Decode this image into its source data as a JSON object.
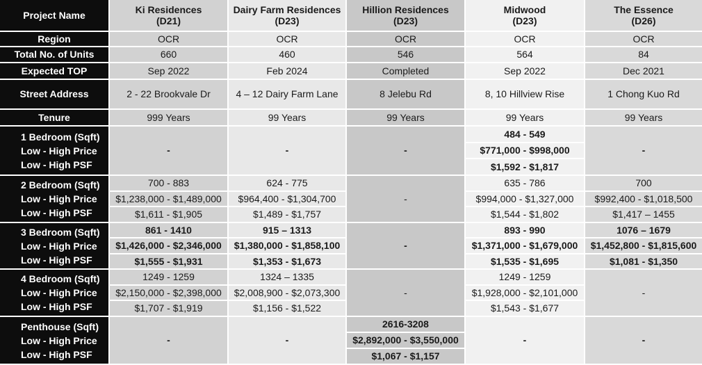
{
  "corner_label": "Project Name",
  "projects": [
    {
      "name": "Ki Residences",
      "district": "(D21)",
      "region": "OCR",
      "units": "660",
      "top": "Sep 2022",
      "address": "2 - 22 Brookvale Dr",
      "tenure": "999 Years"
    },
    {
      "name": "Dairy Farm Residences",
      "district": "(D23)",
      "region": "OCR",
      "units": "460",
      "top": "Feb 2024",
      "address": "4 – 12 Dairy Farm Lane",
      "tenure": "99 Years"
    },
    {
      "name": "Hillion Residences",
      "district": "(D23)",
      "region": "OCR",
      "units": "546",
      "top": "Completed",
      "address": "8 Jelebu Rd",
      "tenure": "99 Years"
    },
    {
      "name": "Midwood",
      "district": "(D23)",
      "region": "OCR",
      "units": "564",
      "top": "Sep 2022",
      "address": "8, 10 Hillview Rise",
      "tenure": "99 Years"
    },
    {
      "name": "The Essence",
      "district": "(D26)",
      "region": "OCR",
      "units": "84",
      "top": "Dec 2021",
      "address": "1 Chong Kuo Rd",
      "tenure": "99 Years"
    }
  ],
  "row_labels": {
    "region": "Region",
    "units": "Total No. of Units",
    "top": "Expected TOP",
    "address": "Street Address",
    "tenure": "Tenure"
  },
  "unit_groups": [
    {
      "labels": [
        "1 Bedroom (Sqft)",
        "Low - High Price",
        "Low - High PSF"
      ],
      "bold": true,
      "cells": [
        {
          "dash": "-"
        },
        {
          "dash": "-"
        },
        {
          "dash": "-"
        },
        {
          "values": [
            "484 - 549",
            "$771,000 - $998,000",
            "$1,592 - $1,817"
          ]
        },
        {
          "dash": "-"
        }
      ]
    },
    {
      "labels": [
        "2 Bedroom (Sqft)",
        "Low - High Price",
        "Low - High PSF"
      ],
      "bold": false,
      "cells": [
        {
          "values": [
            "700 - 883",
            "$1,238,000 - $1,489,000",
            "$1,611 - $1,905"
          ]
        },
        {
          "values": [
            "624  - 775",
            "$964,400 - $1,304,700",
            "$1,489 - $1,757"
          ]
        },
        {
          "dash": "-"
        },
        {
          "values": [
            "635 - 786",
            "$994,000 - $1,327,000",
            "$1,544 - $1,802"
          ]
        },
        {
          "values": [
            "700",
            "$992,400 - $1,018,500",
            "$1,417 – 1455"
          ]
        }
      ]
    },
    {
      "labels": [
        "3 Bedroom (Sqft)",
        "Low - High Price",
        "Low - High PSF"
      ],
      "bold": true,
      "cells": [
        {
          "values": [
            "861 - 1410",
            "$1,426,000 - $2,346,000",
            "$1,555 - $1,931"
          ]
        },
        {
          "values": [
            "915 – 1313",
            "$1,380,000 - $1,858,100",
            "$1,353 - $1,673"
          ]
        },
        {
          "dash": "-"
        },
        {
          "values": [
            "893 - 990",
            "$1,371,000 - $1,679,000",
            "$1,535 - $1,695"
          ]
        },
        {
          "values": [
            "1076 – 1679",
            "$1,452,800 - $1,815,600",
            "$1,081 - $1,350"
          ]
        }
      ]
    },
    {
      "labels": [
        "4 Bedroom (Sqft)",
        "Low - High Price",
        "Low - High PSF"
      ],
      "bold": false,
      "cells": [
        {
          "values": [
            "1249 - 1259",
            "$2,150,000 - $2,398,000",
            "$1,707 - $1,919"
          ]
        },
        {
          "values": [
            "1324 – 1335",
            "$2,008,900 - $2,073,300",
            "$1,156 - $1,522"
          ]
        },
        {
          "dash": "-"
        },
        {
          "values": [
            "1249 - 1259",
            "$1,928,000 - $2,101,000",
            "$1,543 - $1,677"
          ]
        },
        {
          "dash": "-"
        }
      ]
    },
    {
      "labels": [
        "Penthouse (Sqft)",
        "Low - High Price",
        "Low - High PSF"
      ],
      "bold": true,
      "cells": [
        {
          "dash": "-"
        },
        {
          "dash": "-"
        },
        {
          "values": [
            "2616-3208",
            "$2,892,000 - $3,550,000",
            "$1,067 - $1,157"
          ]
        },
        {
          "dash": "-"
        },
        {
          "dash": "-"
        }
      ]
    }
  ]
}
